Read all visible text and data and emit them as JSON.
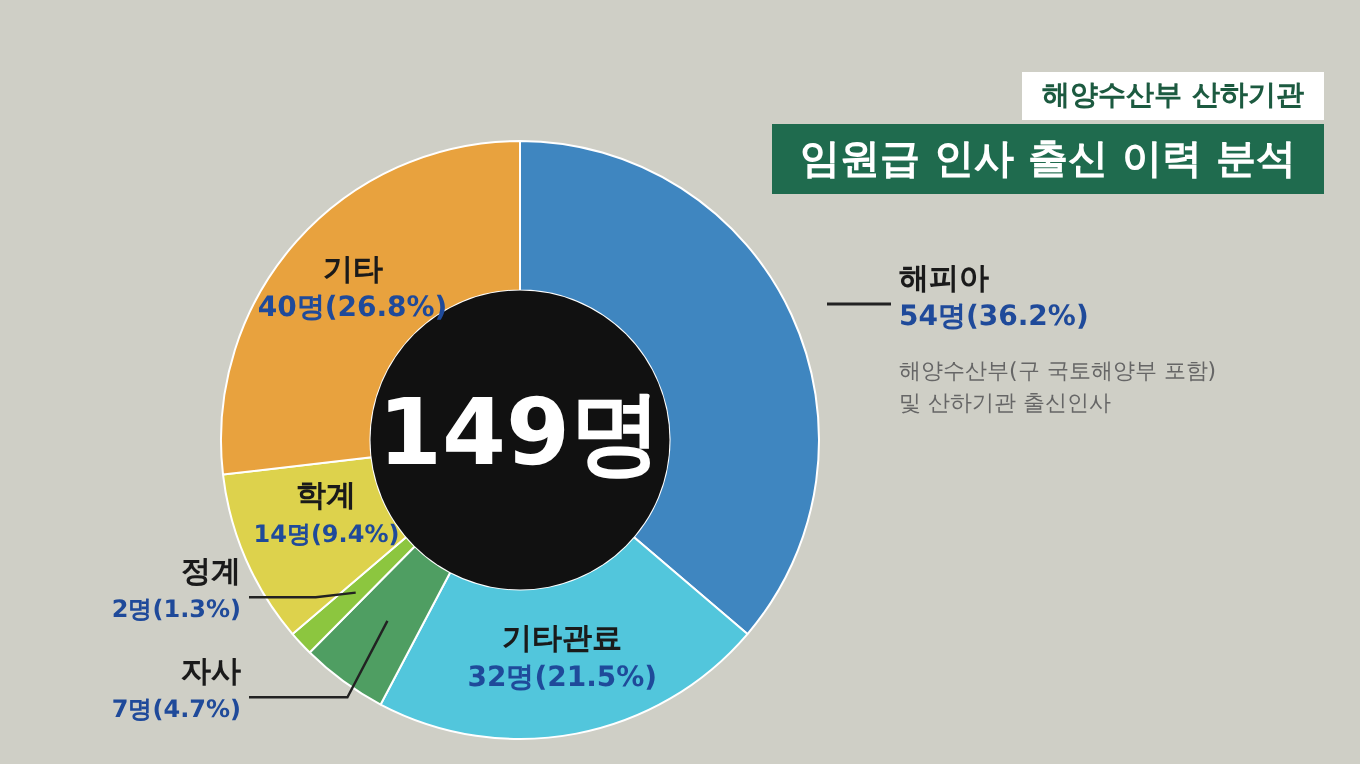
{
  "chart_data": {
    "type": "donut",
    "title": "임원급 인사 출신 이력 분석",
    "subtitle": "해양수산부 산하기관",
    "categories": [
      "해피아",
      "기타관료",
      "자사",
      "정계",
      "학계",
      "기타"
    ],
    "values": [
      54,
      32,
      7,
      2,
      14,
      40
    ],
    "value_labels": [
      "54명(36.2%)",
      "32명(21.5%)",
      "7명(4.7%)",
      "2명(1.3%)",
      "14명(9.4%)",
      "40명(26.8%)"
    ],
    "colors": [
      "#3f86c0",
      "#52c6dc",
      "#4f9e62",
      "#8cc63f",
      "#ddd24c",
      "#e8a23e"
    ],
    "annotations": [
      "149명",
      "해양수산부(구 국토해양부 포함) 및 산하기관 출신인사"
    ],
    "legend": false
  }
}
